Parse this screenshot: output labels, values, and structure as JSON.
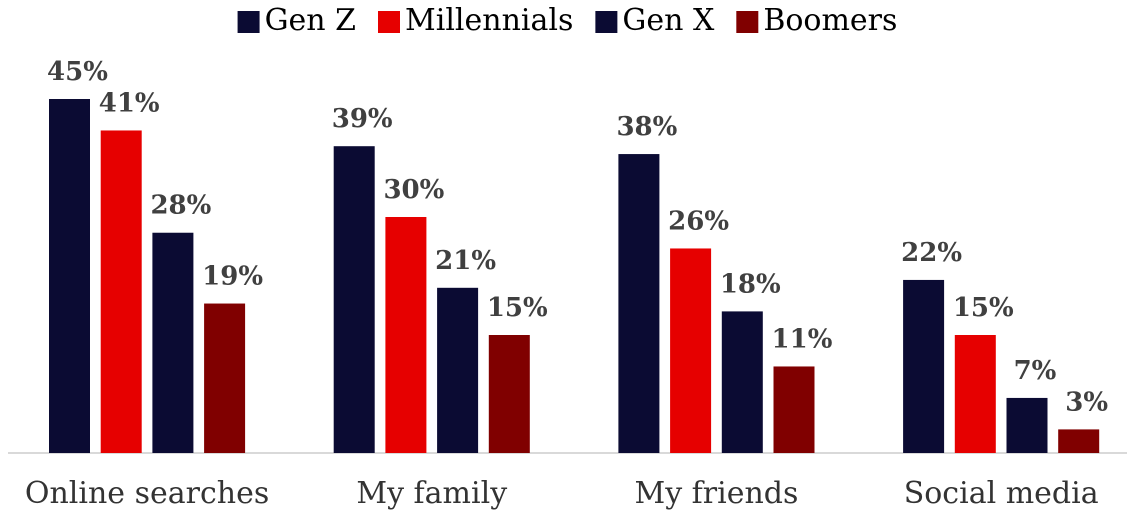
{
  "chart_data": {
    "type": "bar",
    "categories": [
      "Online searches",
      "My family",
      "My friends",
      "Social media"
    ],
    "series": [
      {
        "name": "Gen Z",
        "color": "#0b0b33",
        "values": [
          45,
          39,
          38,
          22
        ],
        "value_labels": [
          "45%",
          "39%",
          "38%",
          "22%"
        ]
      },
      {
        "name": "Millennials",
        "color": "#e60000",
        "values": [
          41,
          30,
          26,
          15
        ],
        "value_labels": [
          "41%",
          "30%",
          "26%",
          "15%"
        ]
      },
      {
        "name": "Gen X",
        "color": "#0b0b33",
        "values": [
          28,
          21,
          18,
          7
        ],
        "value_labels": [
          "28%",
          "21%",
          "18%",
          "7%"
        ]
      },
      {
        "name": "Boomers",
        "color": "#800000",
        "values": [
          19,
          15,
          11,
          3
        ],
        "value_labels": [
          "19%",
          "15%",
          "11%",
          "3%"
        ]
      }
    ],
    "legend": "top"
  }
}
